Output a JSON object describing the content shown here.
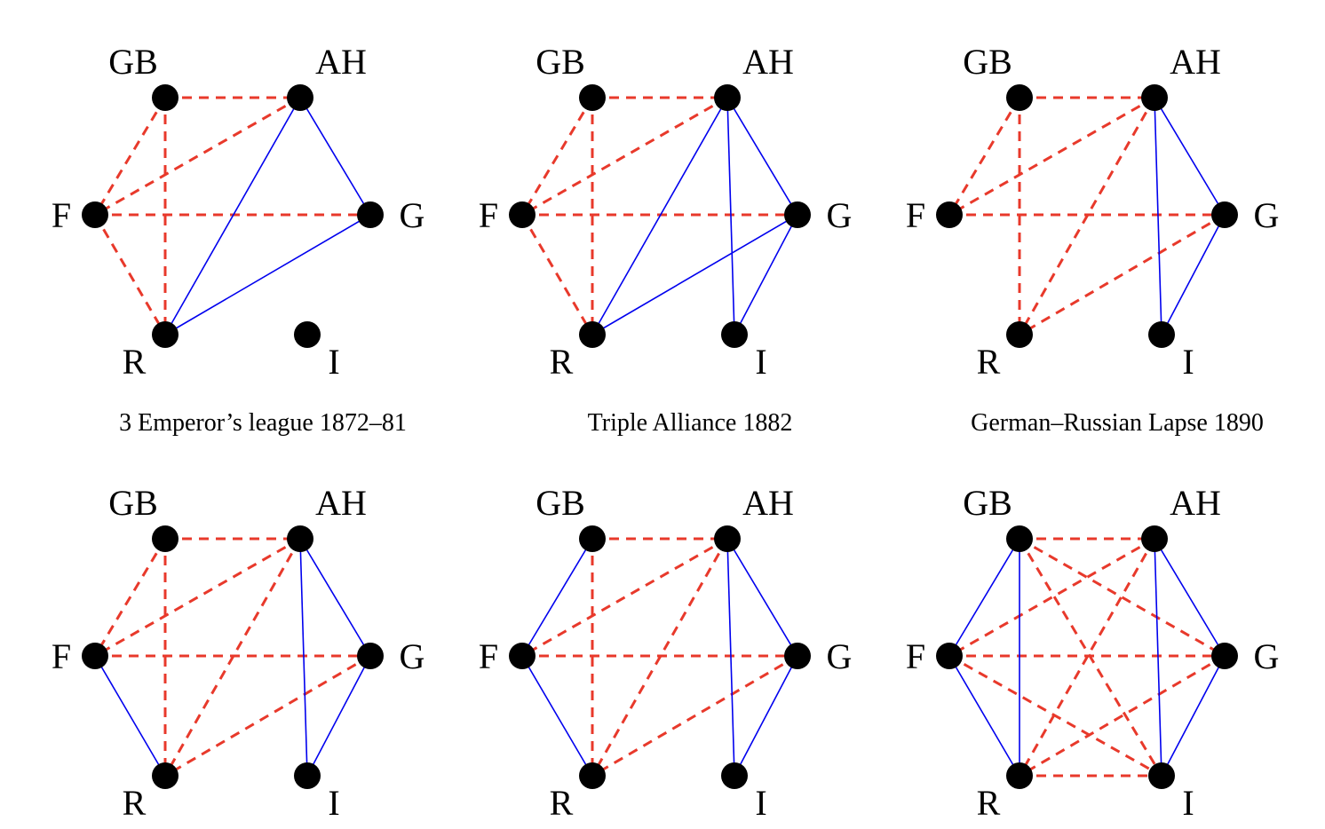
{
  "colors": {
    "alliance_edge": "#0000ee",
    "hostile_edge": "#e8392b",
    "node": "#000000",
    "background": "#ffffff"
  },
  "node_names": [
    "GB",
    "AH",
    "F",
    "G",
    "R",
    "I"
  ],
  "panels": [
    {
      "caption": "3 Emperor’s league 1872–81",
      "alliance_edges": [
        [
          "AH",
          "G"
        ],
        [
          "AH",
          "R"
        ],
        [
          "G",
          "R"
        ]
      ],
      "hostile_edges": [
        [
          "GB",
          "AH"
        ],
        [
          "GB",
          "F"
        ],
        [
          "GB",
          "R"
        ],
        [
          "AH",
          "F"
        ],
        [
          "F",
          "G"
        ],
        [
          "F",
          "R"
        ]
      ]
    },
    {
      "caption": "Triple Alliance 1882",
      "alliance_edges": [
        [
          "AH",
          "G"
        ],
        [
          "AH",
          "R"
        ],
        [
          "AH",
          "I"
        ],
        [
          "G",
          "R"
        ],
        [
          "G",
          "I"
        ]
      ],
      "hostile_edges": [
        [
          "GB",
          "AH"
        ],
        [
          "GB",
          "F"
        ],
        [
          "GB",
          "R"
        ],
        [
          "AH",
          "F"
        ],
        [
          "F",
          "G"
        ],
        [
          "F",
          "R"
        ]
      ]
    },
    {
      "caption": "German–Russian Lapse 1890",
      "alliance_edges": [
        [
          "AH",
          "G"
        ],
        [
          "AH",
          "I"
        ],
        [
          "G",
          "I"
        ]
      ],
      "hostile_edges": [
        [
          "GB",
          "AH"
        ],
        [
          "GB",
          "F"
        ],
        [
          "GB",
          "R"
        ],
        [
          "AH",
          "F"
        ],
        [
          "AH",
          "R"
        ],
        [
          "F",
          "G"
        ],
        [
          "G",
          "R"
        ]
      ]
    },
    {
      "caption": "",
      "alliance_edges": [
        [
          "AH",
          "G"
        ],
        [
          "AH",
          "I"
        ],
        [
          "G",
          "I"
        ],
        [
          "F",
          "R"
        ]
      ],
      "hostile_edges": [
        [
          "GB",
          "AH"
        ],
        [
          "GB",
          "F"
        ],
        [
          "GB",
          "R"
        ],
        [
          "AH",
          "F"
        ],
        [
          "AH",
          "R"
        ],
        [
          "F",
          "G"
        ],
        [
          "G",
          "R"
        ]
      ]
    },
    {
      "caption": "",
      "alliance_edges": [
        [
          "AH",
          "G"
        ],
        [
          "AH",
          "I"
        ],
        [
          "G",
          "I"
        ],
        [
          "F",
          "R"
        ],
        [
          "GB",
          "F"
        ]
      ],
      "hostile_edges": [
        [
          "GB",
          "AH"
        ],
        [
          "GB",
          "R"
        ],
        [
          "AH",
          "F"
        ],
        [
          "AH",
          "R"
        ],
        [
          "F",
          "G"
        ],
        [
          "G",
          "R"
        ]
      ]
    },
    {
      "caption": "",
      "alliance_edges": [
        [
          "GB",
          "F"
        ],
        [
          "GB",
          "R"
        ],
        [
          "F",
          "R"
        ],
        [
          "AH",
          "G"
        ],
        [
          "AH",
          "I"
        ],
        [
          "G",
          "I"
        ]
      ],
      "hostile_edges": [
        [
          "GB",
          "AH"
        ],
        [
          "GB",
          "G"
        ],
        [
          "GB",
          "I"
        ],
        [
          "AH",
          "F"
        ],
        [
          "AH",
          "R"
        ],
        [
          "F",
          "G"
        ],
        [
          "F",
          "I"
        ],
        [
          "G",
          "R"
        ],
        [
          "R",
          "I"
        ]
      ]
    }
  ]
}
